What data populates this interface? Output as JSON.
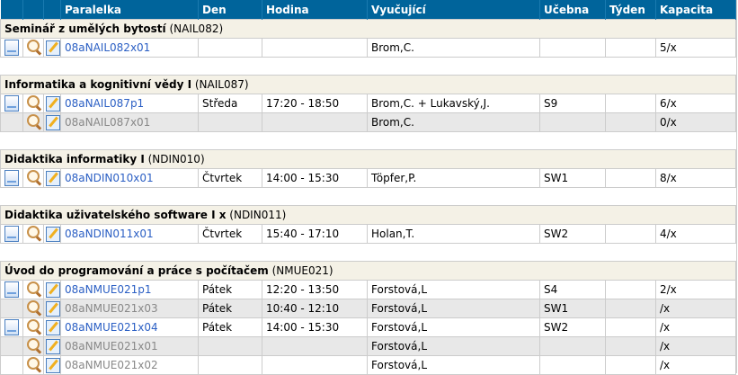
{
  "header": {
    "paralelka": "Paralelka",
    "den": "Den",
    "hodina": "Hodina",
    "vyucujici": "Vyučující",
    "ucebna": "Učebna",
    "tyden": "Týden",
    "kapacita": "Kapacita"
  },
  "groups": [
    {
      "name": "Seminář z umělých bytostí",
      "code": "(NAIL082)",
      "rows": [
        {
          "doc": true,
          "id": "08aNAIL082x01",
          "dim": false,
          "den": "",
          "hodina": "",
          "vyucujici": "Brom,C.",
          "ucebna": "",
          "tyden": "",
          "kapacita": "5/x"
        }
      ]
    },
    {
      "name": "Informatika a kognitivní vědy I",
      "code": "(NAIL087)",
      "rows": [
        {
          "doc": true,
          "id": "08aNAIL087p1",
          "dim": false,
          "den": "Středa",
          "hodina": "17:20 - 18:50",
          "vyucujici": "Brom,C. + Lukavský,J.",
          "ucebna": "S9",
          "tyden": "",
          "kapacita": "6/x"
        },
        {
          "doc": false,
          "id": "08aNAIL087x01",
          "dim": true,
          "den": "",
          "hodina": "",
          "vyucujici": "Brom,C.",
          "ucebna": "",
          "tyden": "",
          "kapacita": "0/x"
        }
      ]
    },
    {
      "name": "Didaktika informatiky I",
      "code": "(NDIN010)",
      "rows": [
        {
          "doc": true,
          "id": "08aNDIN010x01",
          "dim": false,
          "den": "Čtvrtek",
          "hodina": "14:00 - 15:30",
          "vyucujici": "Töpfer,P.",
          "ucebna": "SW1",
          "tyden": "",
          "kapacita": "8/x"
        }
      ]
    },
    {
      "name": "Didaktika uživatelského software I x",
      "code": "(NDIN011)",
      "rows": [
        {
          "doc": true,
          "id": "08aNDIN011x01",
          "dim": false,
          "den": "Čtvrtek",
          "hodina": "15:40 - 17:10",
          "vyucujici": "Holan,T.",
          "ucebna": "SW2",
          "tyden": "",
          "kapacita": "4/x"
        }
      ]
    },
    {
      "name": "Úvod do programování a práce s počítačem",
      "code": "(NMUE021)",
      "rows": [
        {
          "doc": true,
          "id": "08aNMUE021p1",
          "dim": false,
          "den": "Pátek",
          "hodina": "12:20 - 13:50",
          "vyucujici": "Forstová,L",
          "ucebna": "S4",
          "tyden": "",
          "kapacita": "2/x"
        },
        {
          "doc": false,
          "id": "08aNMUE021x03",
          "dim": true,
          "den": "Pátek",
          "hodina": "10:40 - 12:10",
          "vyucujici": "Forstová,L",
          "ucebna": "SW1",
          "tyden": "",
          "kapacita": "/x"
        },
        {
          "doc": true,
          "id": "08aNMUE021x04",
          "dim": false,
          "den": "Pátek",
          "hodina": "14:00 - 15:30",
          "vyucujici": "Forstová,L",
          "ucebna": "SW2",
          "tyden": "",
          "kapacita": "/x"
        },
        {
          "doc": false,
          "id": "08aNMUE021x01",
          "dim": true,
          "den": "",
          "hodina": "",
          "vyucujici": "Forstová,L",
          "ucebna": "",
          "tyden": "",
          "kapacita": "/x"
        },
        {
          "doc": false,
          "id": "08aNMUE021x02",
          "dim": true,
          "den": "",
          "hodina": "",
          "vyucujici": "Forstová,L",
          "ucebna": "",
          "tyden": "",
          "kapacita": "/x"
        }
      ]
    }
  ]
}
